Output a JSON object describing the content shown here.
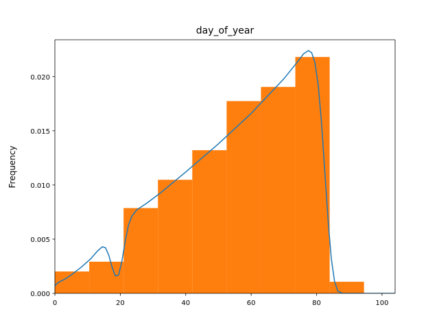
{
  "chart_data": {
    "type": "bar",
    "title": "day_of_year",
    "xlabel": "",
    "ylabel": "Frequency",
    "xlim": [
      0,
      104
    ],
    "ylim": [
      0,
      0.0234
    ],
    "grid": false,
    "x_ticks": [
      0,
      20,
      40,
      60,
      80,
      100
    ],
    "y_ticks": [
      0.0,
      0.005,
      0.01,
      0.015,
      0.02
    ],
    "x_tick_labels": [
      "0",
      "20",
      "40",
      "60",
      "80",
      "100"
    ],
    "y_tick_labels": [
      "0.000",
      "0.005",
      "0.010",
      "0.015",
      "0.020"
    ],
    "histogram": {
      "color": "#ff7f0e",
      "bins": [
        {
          "x0": 0,
          "x1": 10.5,
          "value": 0.00202
        },
        {
          "x0": 10.5,
          "x1": 21,
          "value": 0.00292
        },
        {
          "x0": 21,
          "x1": 31.5,
          "value": 0.00787
        },
        {
          "x0": 31.5,
          "x1": 42,
          "value": 0.01048
        },
        {
          "x0": 42,
          "x1": 52.5,
          "value": 0.01321
        },
        {
          "x0": 52.5,
          "x1": 63,
          "value": 0.01774
        },
        {
          "x0": 63,
          "x1": 73.5,
          "value": 0.01905
        },
        {
          "x0": 73.5,
          "x1": 84,
          "value": 0.02181
        },
        {
          "x0": 84,
          "x1": 94.5,
          "value": 0.00107
        }
      ]
    },
    "density_curve": {
      "color": "#1f77b4",
      "points": [
        [
          0,
          0.0007
        ],
        [
          1,
          0.001
        ],
        [
          3,
          0.0013
        ],
        [
          5,
          0.0017
        ],
        [
          8,
          0.0024
        ],
        [
          11,
          0.0032
        ],
        [
          13,
          0.0039
        ],
        [
          14.5,
          0.0043
        ],
        [
          15.5,
          0.0042
        ],
        [
          16.5,
          0.0035
        ],
        [
          17.5,
          0.0024
        ],
        [
          18.5,
          0.0016
        ],
        [
          19.5,
          0.0017
        ],
        [
          20.5,
          0.003
        ],
        [
          21.5,
          0.0048
        ],
        [
          22.5,
          0.0063
        ],
        [
          23.5,
          0.0071
        ],
        [
          25,
          0.0077
        ],
        [
          28,
          0.0083
        ],
        [
          32,
          0.0092
        ],
        [
          40,
          0.0112
        ],
        [
          50,
          0.0138
        ],
        [
          60,
          0.0166
        ],
        [
          70,
          0.0198
        ],
        [
          74,
          0.0213
        ],
        [
          76,
          0.0221
        ],
        [
          77.5,
          0.0224
        ],
        [
          78.5,
          0.0222
        ],
        [
          79.5,
          0.0213
        ],
        [
          80.5,
          0.0192
        ],
        [
          81.5,
          0.0158
        ],
        [
          82.5,
          0.0113
        ],
        [
          83.5,
          0.0068
        ],
        [
          84.5,
          0.0032
        ],
        [
          85.5,
          0.0011
        ],
        [
          86.5,
          0.0002
        ],
        [
          88,
          0.0
        ],
        [
          104,
          0.0
        ]
      ]
    }
  }
}
